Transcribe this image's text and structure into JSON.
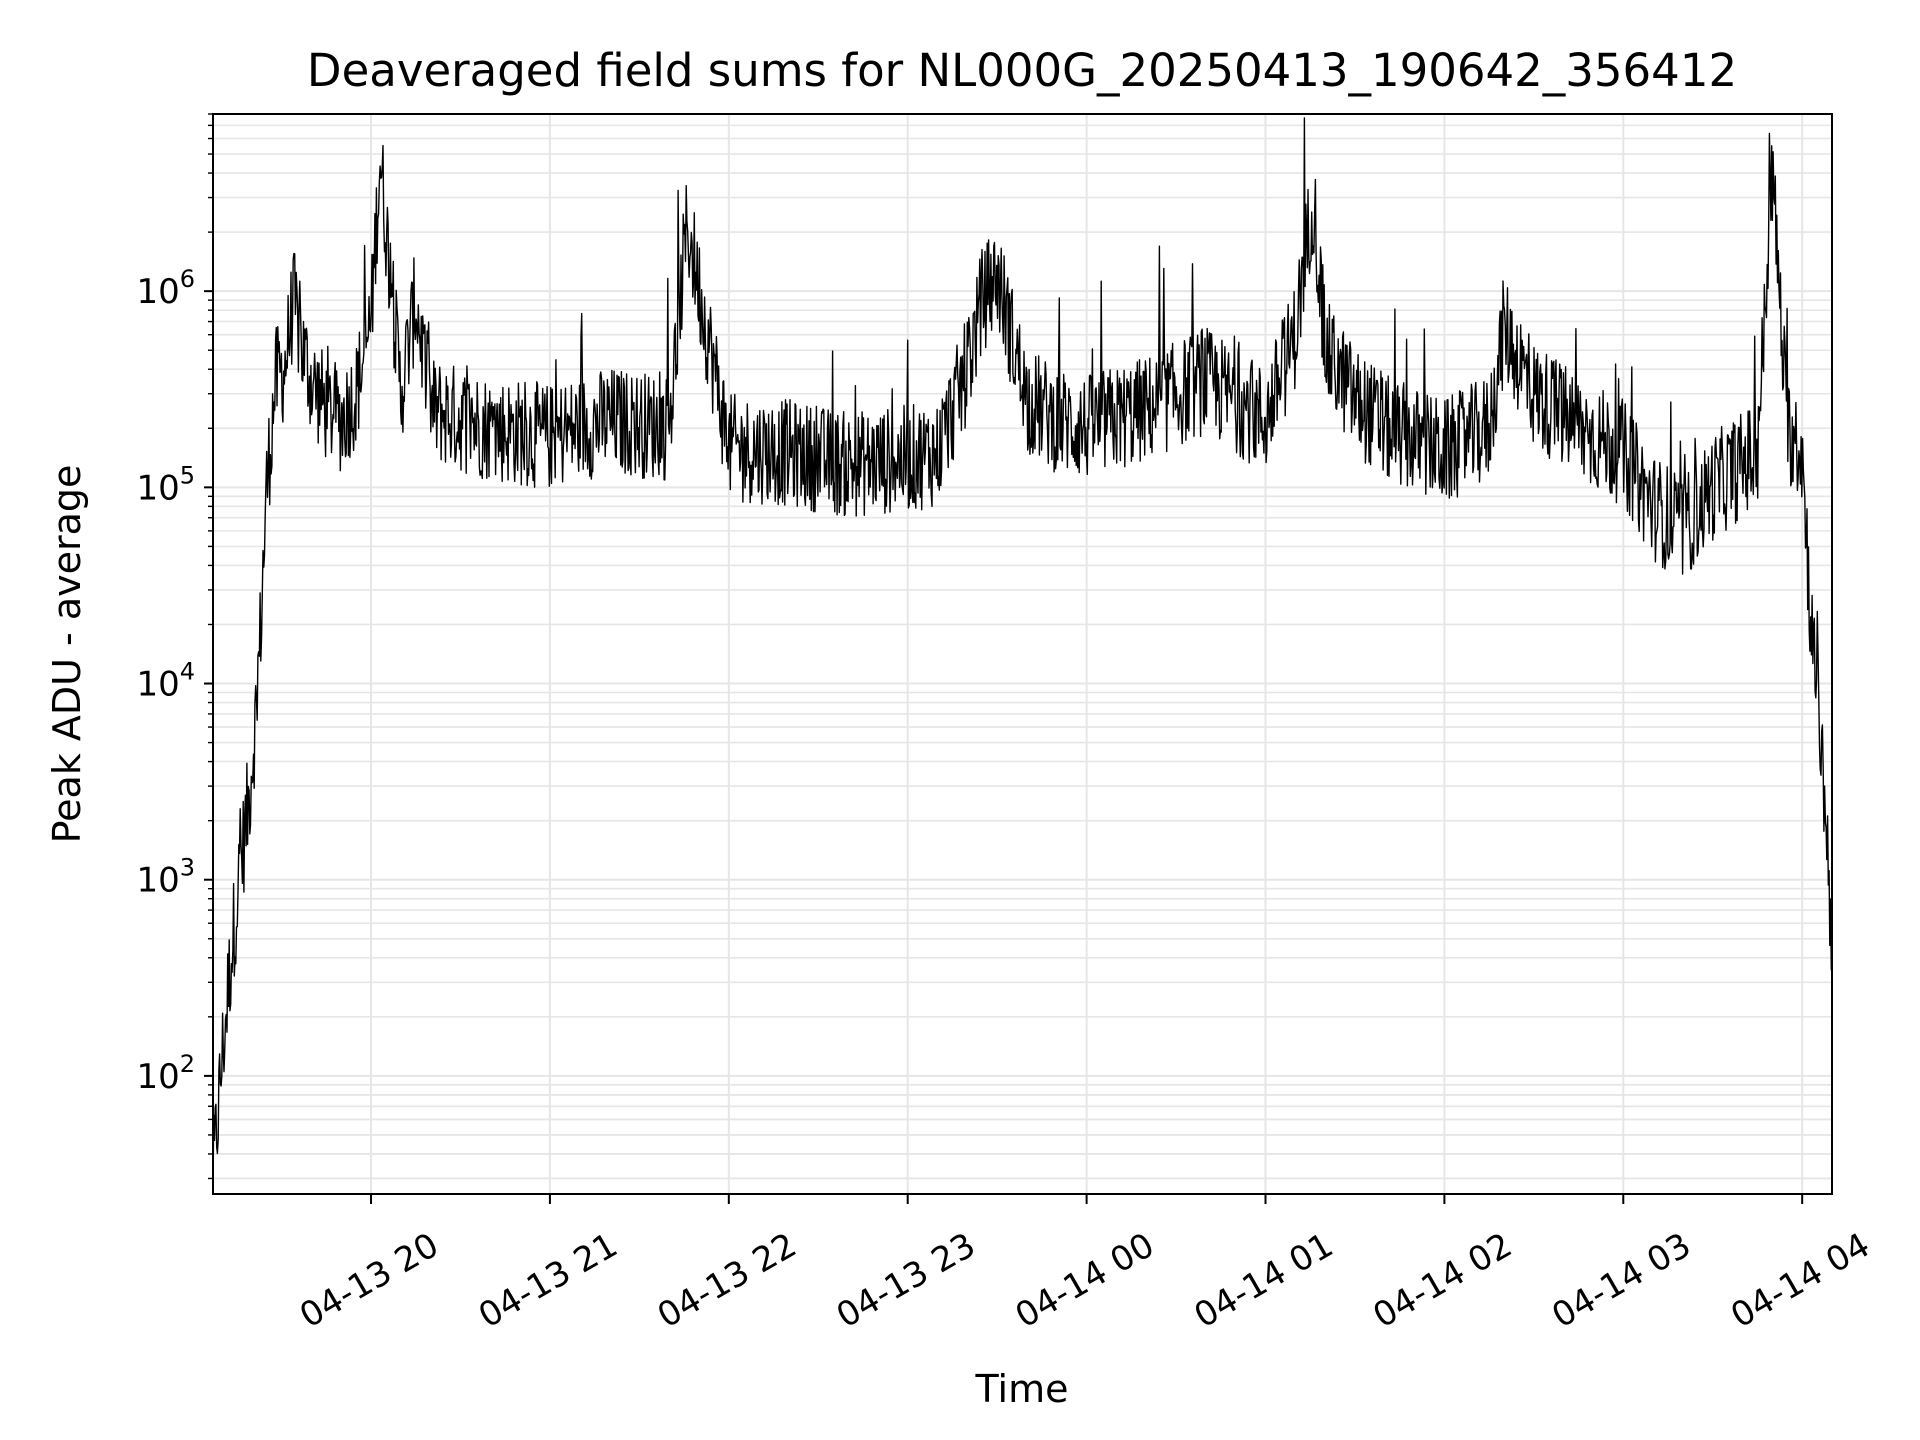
{
  "chart_data": {
    "type": "line",
    "title": "Deaveraged field sums for NL000G_20250413_190642_356412",
    "xlabel": "Time",
    "ylabel": "Peak ADU - average",
    "y_scale": "log",
    "ylim": [
      25,
      8000000
    ],
    "xlim": [
      "2025-04-13 19:07",
      "2025-04-14 04:10"
    ],
    "grid": true,
    "line_color": "#000000",
    "x_ticks": [
      "04-13 20",
      "04-13 21",
      "04-13 22",
      "04-13 23",
      "04-14 00",
      "04-14 01",
      "04-14 02",
      "04-14 03",
      "04-14 04"
    ],
    "x_tick_times": [
      "2025-04-13 20:00",
      "2025-04-13 21:00",
      "2025-04-13 22:00",
      "2025-04-13 23:00",
      "2025-04-14 00:00",
      "2025-04-14 01:00",
      "2025-04-14 02:00",
      "2025-04-14 03:00",
      "2025-04-14 04:00"
    ],
    "y_ticks": [
      {
        "value": 100,
        "base": "10",
        "exp": "2"
      },
      {
        "value": 1000,
        "base": "10",
        "exp": "3"
      },
      {
        "value": 10000,
        "base": "10",
        "exp": "4"
      },
      {
        "value": 100000,
        "base": "10",
        "exp": "5"
      },
      {
        "value": 1000000,
        "base": "10",
        "exp": "6"
      }
    ],
    "series": [
      {
        "x": [
          "2025-04-13 19:07",
          "2025-04-13 19:10",
          "2025-04-13 19:13",
          "2025-04-13 19:16",
          "2025-04-13 19:19",
          "2025-04-13 19:22",
          "2025-04-13 19:25",
          "2025-04-13 19:28",
          "2025-04-13 19:31",
          "2025-04-13 19:34",
          "2025-04-13 19:37",
          "2025-04-13 19:40",
          "2025-04-13 19:45",
          "2025-04-13 19:50",
          "2025-04-13 19:55",
          "2025-04-13 20:00",
          "2025-04-13 20:03",
          "2025-04-13 20:10",
          "2025-04-13 20:15",
          "2025-04-13 20:20",
          "2025-04-13 20:40",
          "2025-04-13 21:00",
          "2025-04-13 21:20",
          "2025-04-13 21:40",
          "2025-04-13 21:46",
          "2025-04-13 22:00",
          "2025-04-13 22:20",
          "2025-04-13 22:40",
          "2025-04-13 23:00",
          "2025-04-13 23:10",
          "2025-04-13 23:20",
          "2025-04-13 23:25",
          "2025-04-13 23:30",
          "2025-04-13 23:40",
          "2025-04-13 23:50",
          "2025-04-14 00:00",
          "2025-04-14 00:20",
          "2025-04-14 00:40",
          "2025-04-14 01:00",
          "2025-04-14 01:10",
          "2025-04-14 01:16",
          "2025-04-14 01:20",
          "2025-04-14 01:30",
          "2025-04-14 01:40",
          "2025-04-14 02:00",
          "2025-04-14 02:15",
          "2025-04-14 02:20",
          "2025-04-14 02:30",
          "2025-04-14 02:45",
          "2025-04-14 03:00",
          "2025-04-14 03:10",
          "2025-04-14 03:20",
          "2025-04-14 03:30",
          "2025-04-14 03:45",
          "2025-04-14 03:50",
          "2025-04-14 03:55",
          "2025-04-14 04:00",
          "2025-04-14 04:03",
          "2025-04-14 04:06",
          "2025-04-14 04:08",
          "2025-04-14 04:10"
        ],
        "y": [
          30,
          120,
          400,
          1100,
          2500,
          9000,
          100000,
          350000,
          400000,
          900000,
          500000,
          350000,
          250000,
          220000,
          300000,
          700000,
          4800000,
          300000,
          900000,
          250000,
          200000,
          180000,
          220000,
          200000,
          2200000,
          160000,
          150000,
          130000,
          140000,
          150000,
          400000,
          900000,
          1200000,
          280000,
          220000,
          200000,
          250000,
          350000,
          220000,
          600000,
          3100000,
          500000,
          280000,
          200000,
          150000,
          200000,
          650000,
          300000,
          200000,
          150000,
          80000,
          60000,
          100000,
          150000,
          4000000,
          200000,
          150000,
          20000,
          6000,
          2000,
          500
        ]
      }
    ]
  }
}
